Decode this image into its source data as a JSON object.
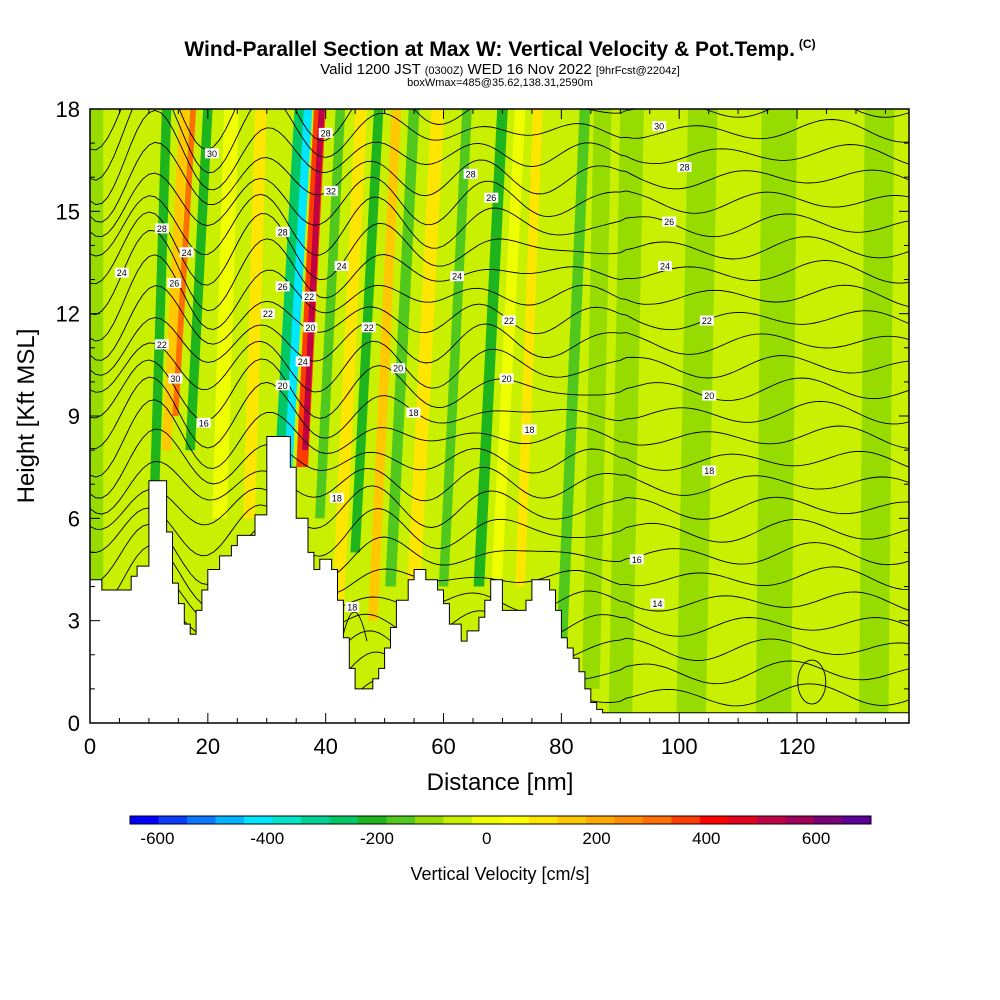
{
  "header": {
    "title": "Wind-Parallel Section at Max W: Vertical Velocity & Pot.Temp.",
    "copyright": "(C)",
    "valid_line_a": "Valid 1200 JST",
    "valid_line_b": "(0300Z)",
    "valid_line_c": "WED 16 Nov 2022",
    "valid_line_d": "[9hrFcst@2204z]",
    "boxline": "boxWmax=485@35.62,138.31,2590m"
  },
  "chart_data": {
    "type": "heatmap",
    "xlabel": "Distance [nm]",
    "ylabel": "Height [Kft MSL]",
    "xlim": [
      0,
      139
    ],
    "ylim": [
      0,
      18
    ],
    "xticks": [
      0,
      20,
      40,
      60,
      80,
      100,
      120
    ],
    "yticks": [
      0,
      3,
      6,
      9,
      12,
      15,
      18
    ],
    "grid": false,
    "colorbar": {
      "label": "Vertical Velocity [cm/s]",
      "min": -650,
      "max": 700,
      "step": 50,
      "ticks": [
        -600,
        -400,
        -200,
        0,
        200,
        400,
        600
      ],
      "colors": [
        "#0000ff",
        "#0a3cff",
        "#0a78ff",
        "#00b4ff",
        "#00e6ff",
        "#00e6c8",
        "#00d296",
        "#00c864",
        "#1eb41e",
        "#50c81e",
        "#96dc00",
        "#c8f000",
        "#f0ff00",
        "#ffff00",
        "#ffe600",
        "#ffc800",
        "#ffaa00",
        "#ff8c00",
        "#ff6e00",
        "#ff3c00",
        "#ff0000",
        "#e6001e",
        "#be0046",
        "#a0005a",
        "#780078",
        "#5a0096"
      ]
    },
    "terrain_kft": [
      [
        0,
        4.2
      ],
      [
        2,
        4.2
      ],
      [
        2,
        3.9
      ],
      [
        7,
        3.9
      ],
      [
        7,
        4.3
      ],
      [
        8,
        4.3
      ],
      [
        8,
        4.6
      ],
      [
        10,
        4.6
      ],
      [
        10,
        7.1
      ],
      [
        13,
        7.1
      ],
      [
        13,
        5.6
      ],
      [
        14,
        5.6
      ],
      [
        14,
        4.1
      ],
      [
        15,
        4.1
      ],
      [
        15,
        3.5
      ],
      [
        16,
        3.5
      ],
      [
        16,
        2.9
      ],
      [
        17,
        2.9
      ],
      [
        17,
        2.6
      ],
      [
        18,
        2.6
      ],
      [
        18,
        3.3
      ],
      [
        19,
        3.3
      ],
      [
        19,
        3.9
      ],
      [
        20,
        3.9
      ],
      [
        20,
        4.5
      ],
      [
        22,
        4.5
      ],
      [
        22,
        4.9
      ],
      [
        24,
        4.9
      ],
      [
        24,
        5.2
      ],
      [
        25,
        5.2
      ],
      [
        25,
        5.5
      ],
      [
        28,
        5.5
      ],
      [
        28,
        6.1
      ],
      [
        30,
        6.1
      ],
      [
        30,
        8.4
      ],
      [
        34,
        8.4
      ],
      [
        34,
        7.5
      ],
      [
        35,
        7.5
      ],
      [
        35,
        6.0
      ],
      [
        37,
        6.0
      ],
      [
        37,
        5.0
      ],
      [
        38,
        5.0
      ],
      [
        38,
        4.5
      ],
      [
        39,
        4.5
      ],
      [
        39,
        4.8
      ],
      [
        41,
        4.8
      ],
      [
        41,
        4.5
      ],
      [
        42,
        4.5
      ],
      [
        42,
        3.6
      ],
      [
        43,
        3.6
      ],
      [
        43,
        2.5
      ],
      [
        44,
        2.5
      ],
      [
        44,
        1.6
      ],
      [
        45,
        1.6
      ],
      [
        45,
        1.0
      ],
      [
        48,
        1.0
      ],
      [
        48,
        1.3
      ],
      [
        49,
        1.3
      ],
      [
        49,
        1.6
      ],
      [
        50,
        1.6
      ],
      [
        50,
        2.2
      ],
      [
        51,
        2.2
      ],
      [
        51,
        2.8
      ],
      [
        52,
        2.8
      ],
      [
        52,
        3.6
      ],
      [
        54,
        3.6
      ],
      [
        54,
        4.2
      ],
      [
        55,
        4.2
      ],
      [
        55,
        4.5
      ],
      [
        57,
        4.5
      ],
      [
        57,
        4.2
      ],
      [
        59,
        4.2
      ],
      [
        59,
        3.9
      ],
      [
        60,
        3.9
      ],
      [
        60,
        3.5
      ],
      [
        61,
        3.5
      ],
      [
        61,
        2.9
      ],
      [
        63,
        2.9
      ],
      [
        63,
        2.4
      ],
      [
        64,
        2.4
      ],
      [
        64,
        2.7
      ],
      [
        66,
        2.7
      ],
      [
        66,
        3.1
      ],
      [
        67,
        3.1
      ],
      [
        67,
        3.6
      ],
      [
        68,
        3.6
      ],
      [
        68,
        4.2
      ],
      [
        70,
        4.2
      ],
      [
        70,
        3.3
      ],
      [
        74,
        3.3
      ],
      [
        74,
        3.6
      ],
      [
        75,
        3.6
      ],
      [
        75,
        4.2
      ],
      [
        78,
        4.2
      ],
      [
        78,
        3.9
      ],
      [
        79,
        3.9
      ],
      [
        79,
        3.3
      ],
      [
        80,
        3.3
      ],
      [
        80,
        2.5
      ],
      [
        81,
        2.5
      ],
      [
        81,
        2.2
      ],
      [
        82,
        2.2
      ],
      [
        82,
        1.9
      ],
      [
        83,
        1.9
      ],
      [
        83,
        1.5
      ],
      [
        84,
        1.5
      ],
      [
        84,
        1.0
      ],
      [
        85,
        1.0
      ],
      [
        85,
        0.6
      ],
      [
        86,
        0.6
      ],
      [
        86,
        0.4
      ],
      [
        87,
        0.4
      ],
      [
        87,
        0.3
      ],
      [
        139,
        0.3
      ]
    ],
    "contour_labels": [
      {
        "text": "30",
        "x": 20.7,
        "y": 16.7
      },
      {
        "text": "24",
        "x": 5.4,
        "y": 13.2
      },
      {
        "text": "28",
        "x": 12.2,
        "y": 14.5
      },
      {
        "text": "24",
        "x": 16.4,
        "y": 13.8
      },
      {
        "text": "26",
        "x": 14.3,
        "y": 12.9
      },
      {
        "text": "22",
        "x": 12.2,
        "y": 11.1
      },
      {
        "text": "30",
        "x": 14.5,
        "y": 10.1
      },
      {
        "text": "16",
        "x": 19.3,
        "y": 8.8
      },
      {
        "text": "28",
        "x": 40.0,
        "y": 17.3
      },
      {
        "text": "28",
        "x": 32.7,
        "y": 14.4
      },
      {
        "text": "32",
        "x": 40.9,
        "y": 15.6
      },
      {
        "text": "26",
        "x": 32.7,
        "y": 12.8
      },
      {
        "text": "24",
        "x": 42.7,
        "y": 13.4
      },
      {
        "text": "22",
        "x": 37.2,
        "y": 12.5
      },
      {
        "text": "22",
        "x": 30.2,
        "y": 12.0
      },
      {
        "text": "20",
        "x": 37.4,
        "y": 11.6
      },
      {
        "text": "24",
        "x": 36.1,
        "y": 10.6
      },
      {
        "text": "20",
        "x": 32.7,
        "y": 9.9
      },
      {
        "text": "22",
        "x": 47.3,
        "y": 11.6
      },
      {
        "text": "20",
        "x": 52.3,
        "y": 10.4
      },
      {
        "text": "18",
        "x": 54.9,
        "y": 9.1
      },
      {
        "text": "18",
        "x": 41.9,
        "y": 6.6
      },
      {
        "text": "18",
        "x": 44.5,
        "y": 3.4
      },
      {
        "text": "28",
        "x": 64.6,
        "y": 16.1
      },
      {
        "text": "26",
        "x": 68.1,
        "y": 15.4
      },
      {
        "text": "24",
        "x": 62.3,
        "y": 13.1
      },
      {
        "text": "22",
        "x": 71.1,
        "y": 11.8
      },
      {
        "text": "20",
        "x": 70.7,
        "y": 10.1
      },
      {
        "text": "18",
        "x": 74.6,
        "y": 8.6
      },
      {
        "text": "30",
        "x": 96.6,
        "y": 17.5
      },
      {
        "text": "28",
        "x": 100.9,
        "y": 16.3
      },
      {
        "text": "26",
        "x": 98.3,
        "y": 14.7
      },
      {
        "text": "24",
        "x": 97.6,
        "y": 13.4
      },
      {
        "text": "22",
        "x": 104.7,
        "y": 11.8
      },
      {
        "text": "20",
        "x": 105.1,
        "y": 9.6
      },
      {
        "text": "18",
        "x": 105.1,
        "y": 7.4
      },
      {
        "text": "16",
        "x": 92.8,
        "y": 4.8
      },
      {
        "text": "14",
        "x": 96.3,
        "y": 3.5
      }
    ]
  }
}
